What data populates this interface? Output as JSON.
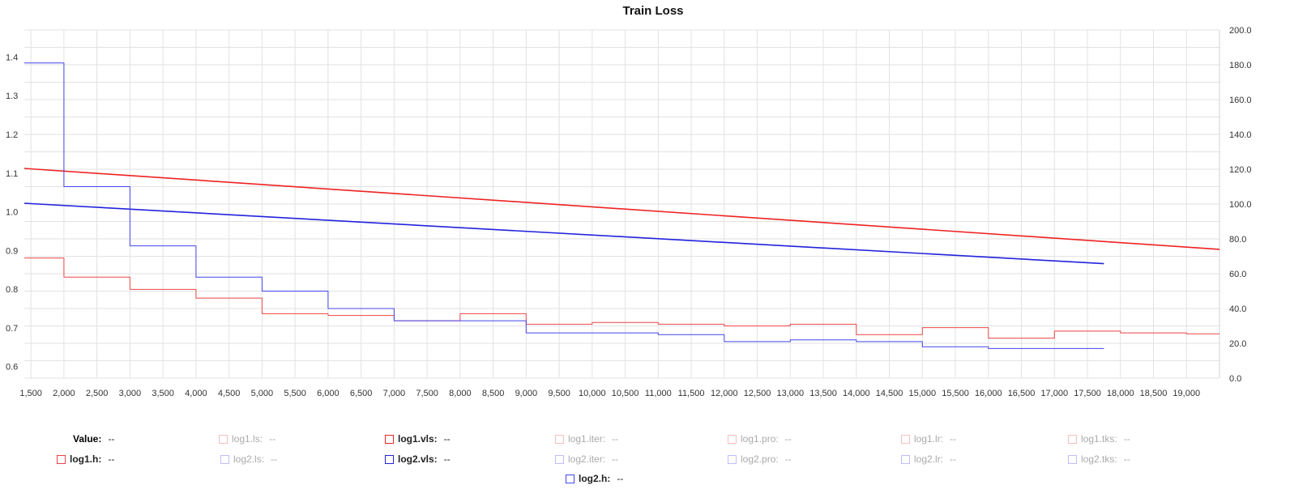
{
  "chart_data": {
    "type": "line",
    "title": "Train Loss",
    "xlabel": "",
    "ylabel": "",
    "xlim": [
      1400,
      19500
    ],
    "ylim_left": [
      0.57,
      1.47
    ],
    "ylim_right": [
      0,
      200
    ],
    "x_ticks": [
      "1,500",
      "2,000",
      "2,500",
      "3,000",
      "3,500",
      "4,000",
      "4,500",
      "5,000",
      "5,500",
      "6,000",
      "6,500",
      "7,000",
      "7,500",
      "8,000",
      "8,500",
      "9,000",
      "9,500",
      "10,000",
      "10,500",
      "11,000",
      "11,500",
      "12,000",
      "12,500",
      "13,000",
      "13,500",
      "14,000",
      "14,500",
      "15,000",
      "15,500",
      "16,000",
      "16,500",
      "17,000",
      "17,500",
      "18,000",
      "18,500",
      "19,000"
    ],
    "y_ticks_left": [
      "0.6",
      "0.7",
      "0.8",
      "0.9",
      "1.0",
      "1.1",
      "1.2",
      "1.3",
      "1.4"
    ],
    "y_ticks_right": [
      "0.0",
      "20.0",
      "40.0",
      "60.0",
      "80.0",
      "100.0",
      "120.0",
      "140.0",
      "160.0",
      "180.0",
      "200.0"
    ],
    "grid": true,
    "series": [
      {
        "name": "log1.vls",
        "axis": "left",
        "step": false,
        "color": "#ee2222",
        "x": [
          1400,
          19500
        ],
        "y": [
          1.112,
          0.903
        ]
      },
      {
        "name": "log2.vls",
        "axis": "left",
        "step": false,
        "color": "#2222dd",
        "x": [
          1400,
          17750
        ],
        "y": [
          1.022,
          0.866
        ]
      },
      {
        "name": "log1.h",
        "axis": "right",
        "step": true,
        "color": "#ee4444",
        "x": [
          1400,
          2000,
          3000,
          4000,
          5000,
          6000,
          7000,
          8000,
          9000,
          10000,
          11000,
          12000,
          13000,
          14000,
          15000,
          16000,
          17000,
          18000,
          19000,
          19500
        ],
        "y": [
          69,
          58,
          51,
          46,
          37,
          36,
          33,
          37,
          31,
          32,
          31,
          30,
          31,
          25,
          29,
          23,
          27,
          26,
          25.5,
          25.5
        ]
      },
      {
        "name": "log2.h",
        "axis": "right",
        "step": true,
        "color": "#4444ee",
        "x": [
          1400,
          2000,
          3000,
          4000,
          5000,
          6000,
          7000,
          9000,
          11000,
          12000,
          13000,
          14000,
          15000,
          16000,
          17750
        ],
        "y": [
          181,
          110,
          76,
          58,
          50,
          40,
          33,
          26,
          25,
          21,
          22,
          21,
          18,
          17,
          17
        ]
      }
    ]
  },
  "legend": {
    "value_label": "Value:",
    "value_text": "--",
    "items": [
      {
        "label": "log1.ls:",
        "value": "--",
        "active": false,
        "color": "#ee4444"
      },
      {
        "label": "log1.vls:",
        "value": "--",
        "active": true,
        "color": "#ee2222"
      },
      {
        "label": "log1.iter:",
        "value": "--",
        "active": false,
        "color": "#ee4444"
      },
      {
        "label": "log1.pro:",
        "value": "--",
        "active": false,
        "color": "#ee4444"
      },
      {
        "label": "log1.lr:",
        "value": "--",
        "active": false,
        "color": "#ee4444"
      },
      {
        "label": "log1.tks:",
        "value": "--",
        "active": false,
        "color": "#ee4444"
      },
      {
        "label": "log1.h:",
        "value": "--",
        "active": true,
        "color": "#ee4444"
      },
      {
        "label": "log2.ls:",
        "value": "--",
        "active": false,
        "color": "#4444ee"
      },
      {
        "label": "log2.vls:",
        "value": "--",
        "active": true,
        "color": "#2222dd"
      },
      {
        "label": "log2.iter:",
        "value": "--",
        "active": false,
        "color": "#4444ee"
      },
      {
        "label": "log2.pro:",
        "value": "--",
        "active": false,
        "color": "#4444ee"
      },
      {
        "label": "log2.lr:",
        "value": "--",
        "active": false,
        "color": "#4444ee"
      },
      {
        "label": "log2.tks:",
        "value": "--",
        "active": false,
        "color": "#4444ee"
      },
      {
        "label": "log2.h:",
        "value": "--",
        "active": true,
        "color": "#4444ee"
      }
    ]
  }
}
